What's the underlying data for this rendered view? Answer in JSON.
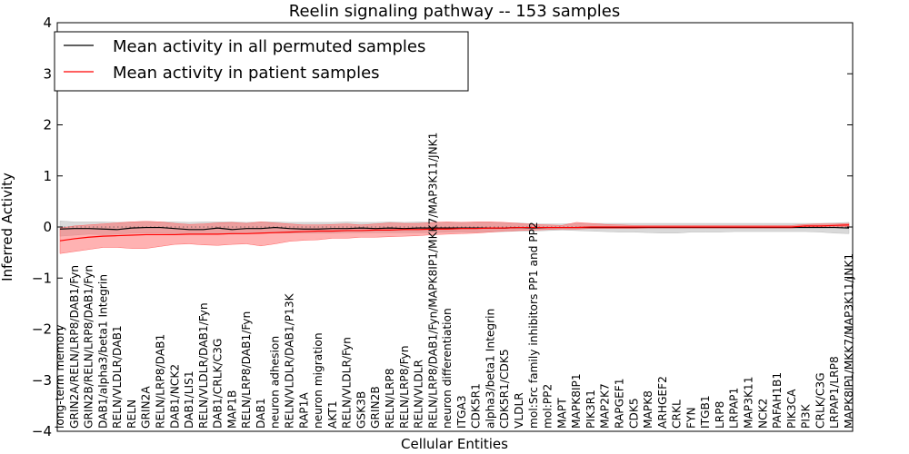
{
  "chart_data": {
    "type": "line",
    "title": "Reelin signaling pathway -- 153 samples",
    "xlabel": "Cellular Entities",
    "ylabel": "Inferred Activity",
    "ylim": [
      -4,
      4
    ],
    "yticks": [
      4,
      3,
      2,
      1,
      0,
      -1,
      -2,
      -3,
      -4
    ],
    "ytick_labels": [
      "4",
      "3",
      "2",
      "1",
      "0",
      "−1",
      "−2",
      "−3",
      "−4"
    ],
    "grid": false,
    "legend": {
      "placement": "top-left",
      "entries": [
        "Mean activity in all permuted samples",
        "Mean activity in patient samples"
      ]
    },
    "colors": {
      "permuted": "#000000",
      "patient": "#ff0000",
      "permuted_band": "#bfbfbf",
      "patient_band": "#ff6666"
    },
    "categories": [
      "long-term memory",
      "GRIN2A/RELN/LRP8/DAB1/Fyn",
      "GRIN2B/RELN/LRP8/DAB1/Fyn",
      "DAB1/alpha3/beta1 Integrin",
      "RELN/VLDLR/DAB1",
      "RELN",
      "GRIN2A",
      "RELN/LRP8/DAB1",
      "DAB1/NCK2",
      "DAB1/LIS1",
      "RELN/VLDLR/DAB1/Fyn",
      "DAB1/CRLK/C3G",
      "MAP1B",
      "RELN/LRP8/DAB1/Fyn",
      "DAB1",
      "neuron adhesion",
      "RELN/VLDLR/DAB1/P13K",
      "RAP1A",
      "neuron migration",
      "AKT1",
      "RELN/VLDLR/Fyn",
      "GSK3B",
      "GRIN2B",
      "RELN/LRP8",
      "RELN/LRP8/Fyn",
      "RELN/VLDLR",
      "RELN/LRP8/DAB1/Fyn/MAPK8IP1/MKK7/MAP3K11/JNK1",
      "neuron differentiation",
      "ITGA3",
      "CDK5R1",
      "alpha3/beta1 Integrin",
      "CDK5R1/CDK5",
      "VLDLR",
      "mol:Src family inhibitors PP1 and PP2",
      "mol:PP2",
      "MAPT",
      "MAPK8IP1",
      "PIK3R1",
      "MAP2K7",
      "RAPGEF1",
      "CDK5",
      "MAPK8",
      "ARHGEF2",
      "CRKL",
      "FYN",
      "ITGB1",
      "LRP8",
      "LRPAP1",
      "MAP3K11",
      "NCK2",
      "PAFAH1B1",
      "PIK3CA",
      "PI3K",
      "CRLK/C3G",
      "LRPAP1/LRP8",
      "MAPK8IP1/MKK7/MAP3K11/JNK1"
    ],
    "series": [
      {
        "name": "Mean activity in all permuted samples",
        "values": [
          -0.04,
          -0.03,
          -0.03,
          -0.04,
          -0.05,
          -0.02,
          -0.01,
          -0.01,
          -0.03,
          -0.05,
          -0.05,
          -0.02,
          -0.05,
          -0.03,
          -0.03,
          -0.01,
          -0.03,
          -0.04,
          -0.04,
          -0.03,
          -0.03,
          -0.02,
          -0.03,
          -0.02,
          -0.03,
          -0.02,
          -0.02,
          -0.02,
          -0.02,
          -0.02,
          -0.02,
          -0.02,
          -0.01,
          -0.02,
          -0.01,
          -0.01,
          -0.01,
          -0.01,
          -0.01,
          -0.01,
          -0.01,
          -0.01,
          -0.01,
          -0.01,
          -0.01,
          -0.01,
          -0.01,
          -0.01,
          -0.01,
          -0.01,
          -0.01,
          -0.01,
          -0.01,
          -0.01,
          -0.01,
          -0.02
        ],
        "lower": [
          -0.18,
          -0.16,
          -0.14,
          -0.15,
          -0.14,
          -0.12,
          -0.12,
          -0.12,
          -0.13,
          -0.14,
          -0.14,
          -0.13,
          -0.14,
          -0.13,
          -0.12,
          -0.12,
          -0.12,
          -0.12,
          -0.12,
          -0.12,
          -0.11,
          -0.11,
          -0.11,
          -0.11,
          -0.11,
          -0.11,
          -0.11,
          -0.1,
          -0.1,
          -0.1,
          -0.1,
          -0.09,
          -0.08,
          -0.08,
          -0.07,
          -0.06,
          -0.07,
          -0.08,
          -0.09,
          -0.1,
          -0.1,
          -0.11,
          -0.12,
          -0.12,
          -0.1,
          -0.1,
          -0.1,
          -0.09,
          -0.09,
          -0.09,
          -0.09,
          -0.09,
          -0.09,
          -0.1,
          -0.12,
          -0.13
        ],
        "upper": [
          0.12,
          0.1,
          0.1,
          0.1,
          0.09,
          0.1,
          0.11,
          0.1,
          0.1,
          0.09,
          0.1,
          0.1,
          0.1,
          0.09,
          0.1,
          0.1,
          0.09,
          0.09,
          0.09,
          0.09,
          0.1,
          0.09,
          0.09,
          0.1,
          0.09,
          0.1,
          0.09,
          0.09,
          0.09,
          0.09,
          0.09,
          0.08,
          0.08,
          0.06,
          0.06,
          0.06,
          0.07,
          0.07,
          0.07,
          0.07,
          0.07,
          0.07,
          0.07,
          0.07,
          0.07,
          0.07,
          0.07,
          0.07,
          0.07,
          0.07,
          0.07,
          0.07,
          0.07,
          0.07,
          0.08,
          0.09
        ]
      },
      {
        "name": "Mean activity in patient samples",
        "values": [
          -0.27,
          -0.23,
          -0.2,
          -0.18,
          -0.17,
          -0.16,
          -0.15,
          -0.15,
          -0.15,
          -0.14,
          -0.14,
          -0.14,
          -0.13,
          -0.13,
          -0.12,
          -0.11,
          -0.1,
          -0.09,
          -0.08,
          -0.08,
          -0.07,
          -0.07,
          -0.06,
          -0.06,
          -0.05,
          -0.05,
          -0.04,
          -0.04,
          -0.03,
          -0.03,
          -0.02,
          -0.02,
          -0.01,
          -0.01,
          -0.01,
          -0.01,
          -0.01,
          0.0,
          0.0,
          0.0,
          0.0,
          0.0,
          0.0,
          0.0,
          0.0,
          0.0,
          0.0,
          0.0,
          0.0,
          0.0,
          0.0,
          0.0,
          0.02,
          0.02,
          0.03,
          0.04
        ],
        "lower": [
          -0.52,
          -0.48,
          -0.44,
          -0.4,
          -0.4,
          -0.42,
          -0.42,
          -0.38,
          -0.34,
          -0.33,
          -0.35,
          -0.36,
          -0.34,
          -0.33,
          -0.37,
          -0.33,
          -0.28,
          -0.26,
          -0.25,
          -0.22,
          -0.22,
          -0.2,
          -0.2,
          -0.19,
          -0.18,
          -0.17,
          -0.15,
          -0.14,
          -0.13,
          -0.12,
          -0.1,
          -0.08,
          -0.07,
          -0.06,
          -0.05,
          -0.04,
          -0.04,
          -0.03,
          -0.03,
          -0.03,
          -0.03,
          -0.02,
          -0.02,
          -0.02,
          -0.02,
          -0.02,
          -0.02,
          -0.02,
          -0.02,
          -0.02,
          -0.02,
          -0.02,
          0.0,
          0.0,
          0.0,
          0.01
        ],
        "upper": [
          -0.02,
          0.02,
          0.04,
          0.06,
          0.08,
          0.1,
          0.11,
          0.1,
          0.07,
          0.05,
          0.06,
          0.08,
          0.09,
          0.07,
          0.1,
          0.08,
          0.06,
          0.04,
          0.04,
          0.05,
          0.06,
          0.04,
          0.06,
          0.08,
          0.07,
          0.07,
          0.09,
          0.1,
          0.09,
          0.1,
          0.1,
          0.09,
          0.07,
          0.05,
          0.04,
          0.03,
          0.09,
          0.07,
          0.05,
          0.04,
          0.03,
          0.03,
          0.03,
          0.03,
          0.03,
          0.03,
          0.03,
          0.03,
          0.03,
          0.03,
          0.03,
          0.03,
          0.05,
          0.06,
          0.06,
          0.07
        ]
      }
    ]
  }
}
